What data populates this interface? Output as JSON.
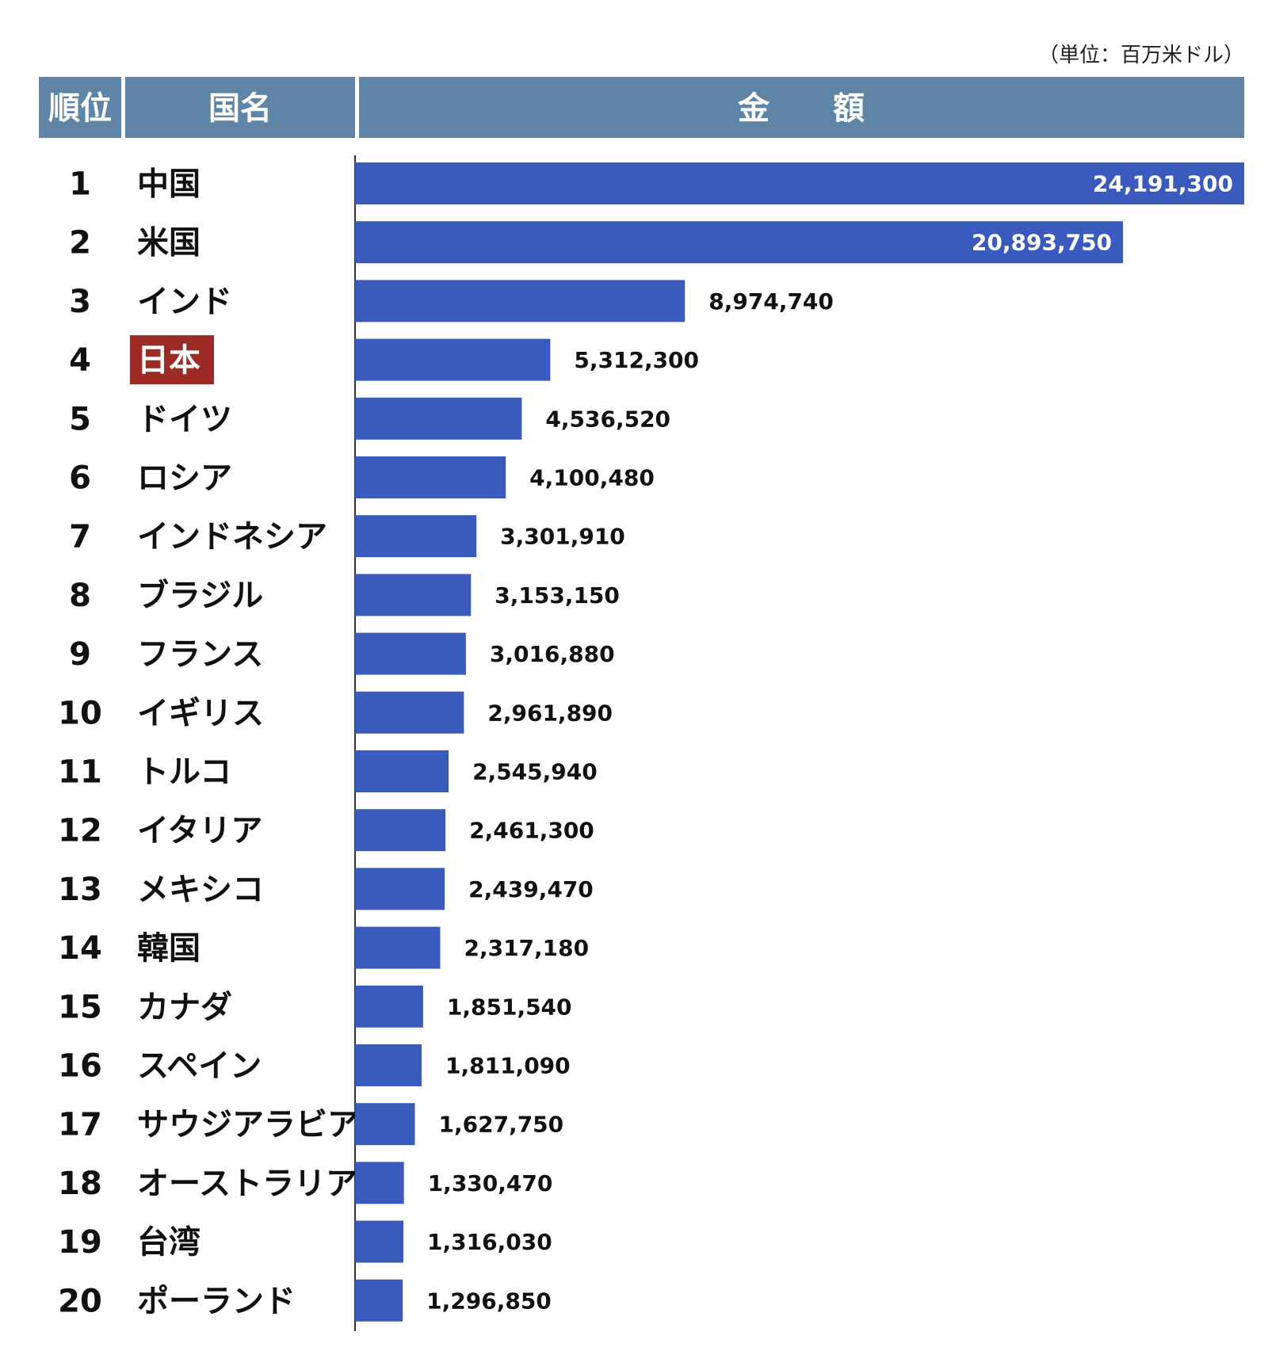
{
  "unit_note": "（単位：百万米ドル）",
  "header": {
    "rank_label": "順位",
    "country_label": "国名",
    "amount_label": "金　　額"
  },
  "colors": {
    "header_bg": "#5f85a6",
    "bar": "#3a5bbd",
    "highlight_bg": "#9c2a25"
  },
  "chart_data": {
    "type": "bar",
    "orientation": "horizontal",
    "categories": [
      "中国",
      "米国",
      "インド",
      "日本",
      "ドイツ",
      "ロシア",
      "インドネシア",
      "ブラジル",
      "フランス",
      "イギリス",
      "トルコ",
      "イタリア",
      "メキシコ",
      "韓国",
      "カナダ",
      "スペイン",
      "サウジアラビア",
      "オーストラリア",
      "台湾",
      "ポーランド"
    ],
    "ranks": [
      "1",
      "2",
      "3",
      "4",
      "5",
      "6",
      "7",
      "8",
      "9",
      "10",
      "11",
      "12",
      "13",
      "14",
      "15",
      "16",
      "17",
      "18",
      "19",
      "20"
    ],
    "values": [
      24191300,
      20893750,
      8974740,
      5312300,
      4536520,
      4100480,
      3301910,
      3153150,
      3016880,
      2961890,
      2545940,
      2461300,
      2439470,
      2317180,
      1851540,
      1811090,
      1627750,
      1330470,
      1316030,
      1296850
    ],
    "value_labels": [
      "24,191,300",
      "20,893,750",
      "8,974,740",
      "5,312,300",
      "4,536,520",
      "4,100,480",
      "3,301,910",
      "3,153,150",
      "3,016,880",
      "2,961,890",
      "2,545,940",
      "2,461,300",
      "2,439,470",
      "2,317,180",
      "1,851,540",
      "1,811,090",
      "1,627,750",
      "1,330,470",
      "1,316,030",
      "1,296,850"
    ],
    "highlight": "日本",
    "xlim": [
      0,
      24191300
    ],
    "grid": false
  }
}
